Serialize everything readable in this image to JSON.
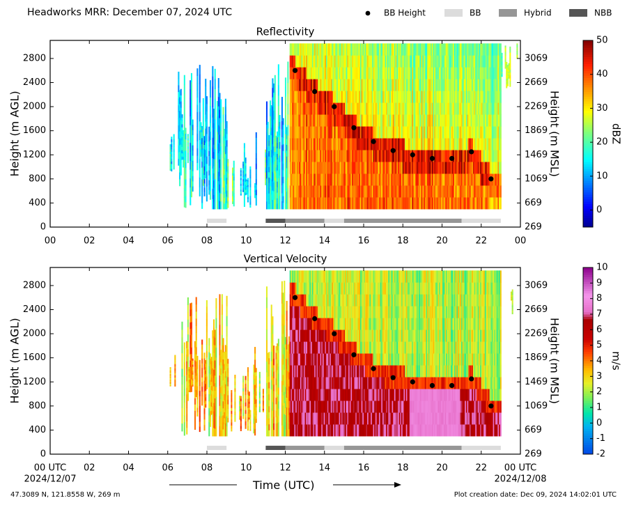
{
  "header": {
    "title": "Headworks MRR:  December 07, 2024 UTC",
    "legend": [
      {
        "label": "BB Height",
        "kind": "dot",
        "color": "#000000"
      },
      {
        "label": "BB",
        "kind": "box",
        "color": "#dcdcdc"
      },
      {
        "label": "Hybrid",
        "kind": "box",
        "color": "#969696"
      },
      {
        "label": "NBB",
        "kind": "box",
        "color": "#555555"
      }
    ]
  },
  "chart_data": [
    {
      "type": "heatmap",
      "title": "Reflectivity",
      "ylabel": "Height (m AGL)",
      "ylabel_right": "Height (m MSL)",
      "x_ticks": [
        "00",
        "02",
        "04",
        "06",
        "08",
        "10",
        "12",
        "14",
        "16",
        "18",
        "20",
        "22",
        "00"
      ],
      "xlim": [
        0,
        24
      ],
      "y_ticks": [
        0,
        400,
        800,
        1200,
        1600,
        2000,
        2400,
        2800
      ],
      "ylim": [
        0,
        3100
      ],
      "y_ticks_right": [
        "269",
        "669",
        "1069",
        "1469",
        "1869",
        "2269",
        "2669",
        "3069"
      ],
      "colorbar": {
        "label": "dBZ",
        "range": [
          -5,
          50
        ],
        "ticks": [
          0,
          10,
          20,
          30,
          40,
          50
        ],
        "colormap": "jet"
      },
      "bb_height": [
        {
          "x": 12.5,
          "y": 2600
        },
        {
          "x": 13.5,
          "y": 2250
        },
        {
          "x": 14.5,
          "y": 2000
        },
        {
          "x": 15.5,
          "y": 1650
        },
        {
          "x": 16.5,
          "y": 1420
        },
        {
          "x": 17.5,
          "y": 1270
        },
        {
          "x": 18.5,
          "y": 1200
        },
        {
          "x": 19.5,
          "y": 1140
        },
        {
          "x": 20.5,
          "y": 1140
        },
        {
          "x": 21.5,
          "y": 1250
        },
        {
          "x": 22.5,
          "y": 800
        }
      ],
      "bb_type": [
        {
          "x0": 8.0,
          "x1": 9.0,
          "type": "BB"
        },
        {
          "x0": 11.0,
          "x1": 12.0,
          "type": "NBB"
        },
        {
          "x0": 12.0,
          "x1": 14.0,
          "type": "Hybrid"
        },
        {
          "x0": 14.0,
          "x1": 15.0,
          "type": "BB"
        },
        {
          "x0": 15.0,
          "x1": 21.0,
          "type": "Hybrid"
        },
        {
          "x0": 21.0,
          "x1": 23.0,
          "type": "BB"
        }
      ]
    },
    {
      "type": "heatmap",
      "title": "Vertical Velocity",
      "ylabel": "Height (m AGL)",
      "ylabel_right": "Height (m MSL)",
      "x_ticks": [
        "00 UTC",
        "02",
        "04",
        "06",
        "08",
        "10",
        "12",
        "14",
        "16",
        "18",
        "20",
        "22",
        "00 UTC"
      ],
      "x_subticks": {
        "first": "2024/12/07",
        "last": "2024/12/08"
      },
      "xlim": [
        0,
        24
      ],
      "y_ticks": [
        0,
        400,
        800,
        1200,
        1600,
        2000,
        2400,
        2800
      ],
      "ylim": [
        0,
        3100
      ],
      "y_ticks_right": [
        "269",
        "669",
        "1069",
        "1469",
        "1869",
        "2269",
        "2669",
        "3069"
      ],
      "colorbar": {
        "label": "m/s",
        "range": [
          -2,
          10
        ],
        "ticks": [
          -2,
          -1,
          0,
          1,
          2,
          3,
          4,
          5,
          6,
          7,
          8,
          9,
          10
        ],
        "colormap": "velocity"
      },
      "bb_height": [
        {
          "x": 12.5,
          "y": 2600
        },
        {
          "x": 13.5,
          "y": 2250
        },
        {
          "x": 14.5,
          "y": 2000
        },
        {
          "x": 15.5,
          "y": 1650
        },
        {
          "x": 16.5,
          "y": 1420
        },
        {
          "x": 17.5,
          "y": 1270
        },
        {
          "x": 18.5,
          "y": 1200
        },
        {
          "x": 19.5,
          "y": 1140
        },
        {
          "x": 20.5,
          "y": 1140
        },
        {
          "x": 21.5,
          "y": 1250
        },
        {
          "x": 22.5,
          "y": 800
        }
      ],
      "bb_type": [
        {
          "x0": 8.0,
          "x1": 9.0,
          "type": "BB"
        },
        {
          "x0": 11.0,
          "x1": 12.0,
          "type": "NBB"
        },
        {
          "x0": 12.0,
          "x1": 14.0,
          "type": "Hybrid"
        },
        {
          "x0": 14.0,
          "x1": 15.0,
          "type": "BB"
        },
        {
          "x0": 15.0,
          "x1": 21.0,
          "type": "Hybrid"
        },
        {
          "x0": 21.0,
          "x1": 23.0,
          "type": "BB"
        }
      ]
    }
  ],
  "xlabel": "Time (UTC)",
  "footer": {
    "location": "47.3089 N, 121.8558 W, 269 m",
    "created": "Plot creation date: Dec 09, 2024 14:02:01 UTC"
  }
}
